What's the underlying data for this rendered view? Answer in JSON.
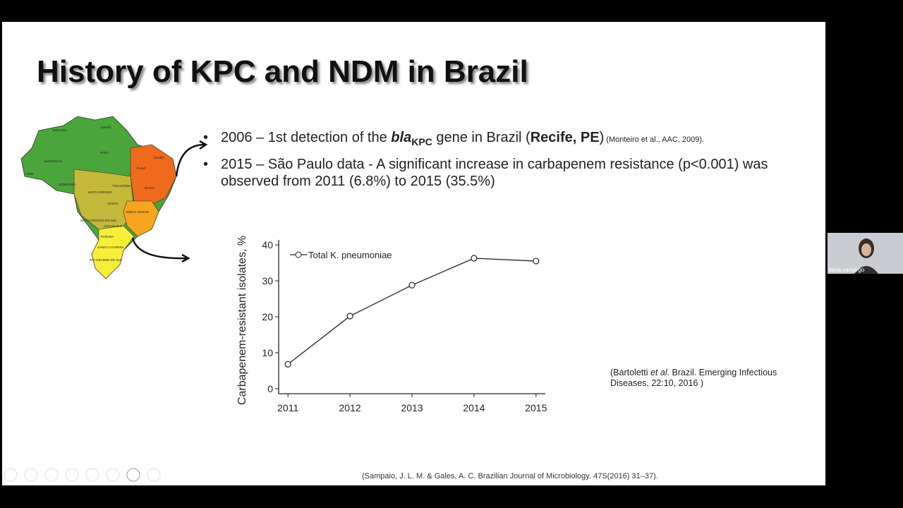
{
  "slide": {
    "title": "History of KPC and NDM in Brazil",
    "bullets": [
      {
        "parts": [
          "2006 – 1st detection of the ",
          "bla",
          "KPC",
          " gene in Brazil (",
          "Recife, PE",
          ")",
          " (Monteiro et al., AAC, 2009)."
        ]
      },
      {
        "parts": [
          "2015 – São Paulo data - A significant increase in carbapenem resistance (p<0.001) was observed from 2011 (6.8%) to 2015 (35.5%)"
        ]
      }
    ],
    "map_labels": [
      "RORAIMA",
      "AMAPÁ",
      "AMAZONAS",
      "PARÁ",
      "ACRE",
      "RONDÔNIA",
      "TOCANTINS",
      "PIAUÍ",
      "CEARÁ",
      "BAHIA",
      "MATO GROSSO",
      "GOIÁS",
      "MINAS GERAIS",
      "MATO GROSSO DO SUL",
      "SÃO PAULO",
      "PARANÁ",
      "SANTA CATARINA",
      "RIO GRANDE DO SUL"
    ],
    "chart": {
      "type": "line",
      "ylabel": "Carbapenem-resistant isolates, %",
      "x": [
        2011,
        2012,
        2013,
        2014,
        2015
      ],
      "series": [
        {
          "name": "Total K. pneumoniae",
          "color": "#222222",
          "values": [
            6.8,
            20.2,
            28.8,
            36.3,
            35.5
          ]
        }
      ],
      "xlim": [
        2010.85,
        2015.15
      ],
      "ylim": [
        -1.4,
        41.4
      ],
      "xticks": [
        2011,
        2012,
        2013,
        2014,
        2015
      ],
      "yticks": [
        0,
        10,
        20,
        30,
        40
      ]
    },
    "citation": [
      "(Bartoletti ",
      "et al",
      ". Brazil.  Emerging Infectious",
      "Diseases, 22:10, 2016 )"
    ],
    "footer": "(Sampaio, J. L. M. & Gales, A. C. Brazilian Journal of Microbiology. 47S(2016) 31–37)."
  },
  "participant": {
    "name": "ilana camargo"
  }
}
